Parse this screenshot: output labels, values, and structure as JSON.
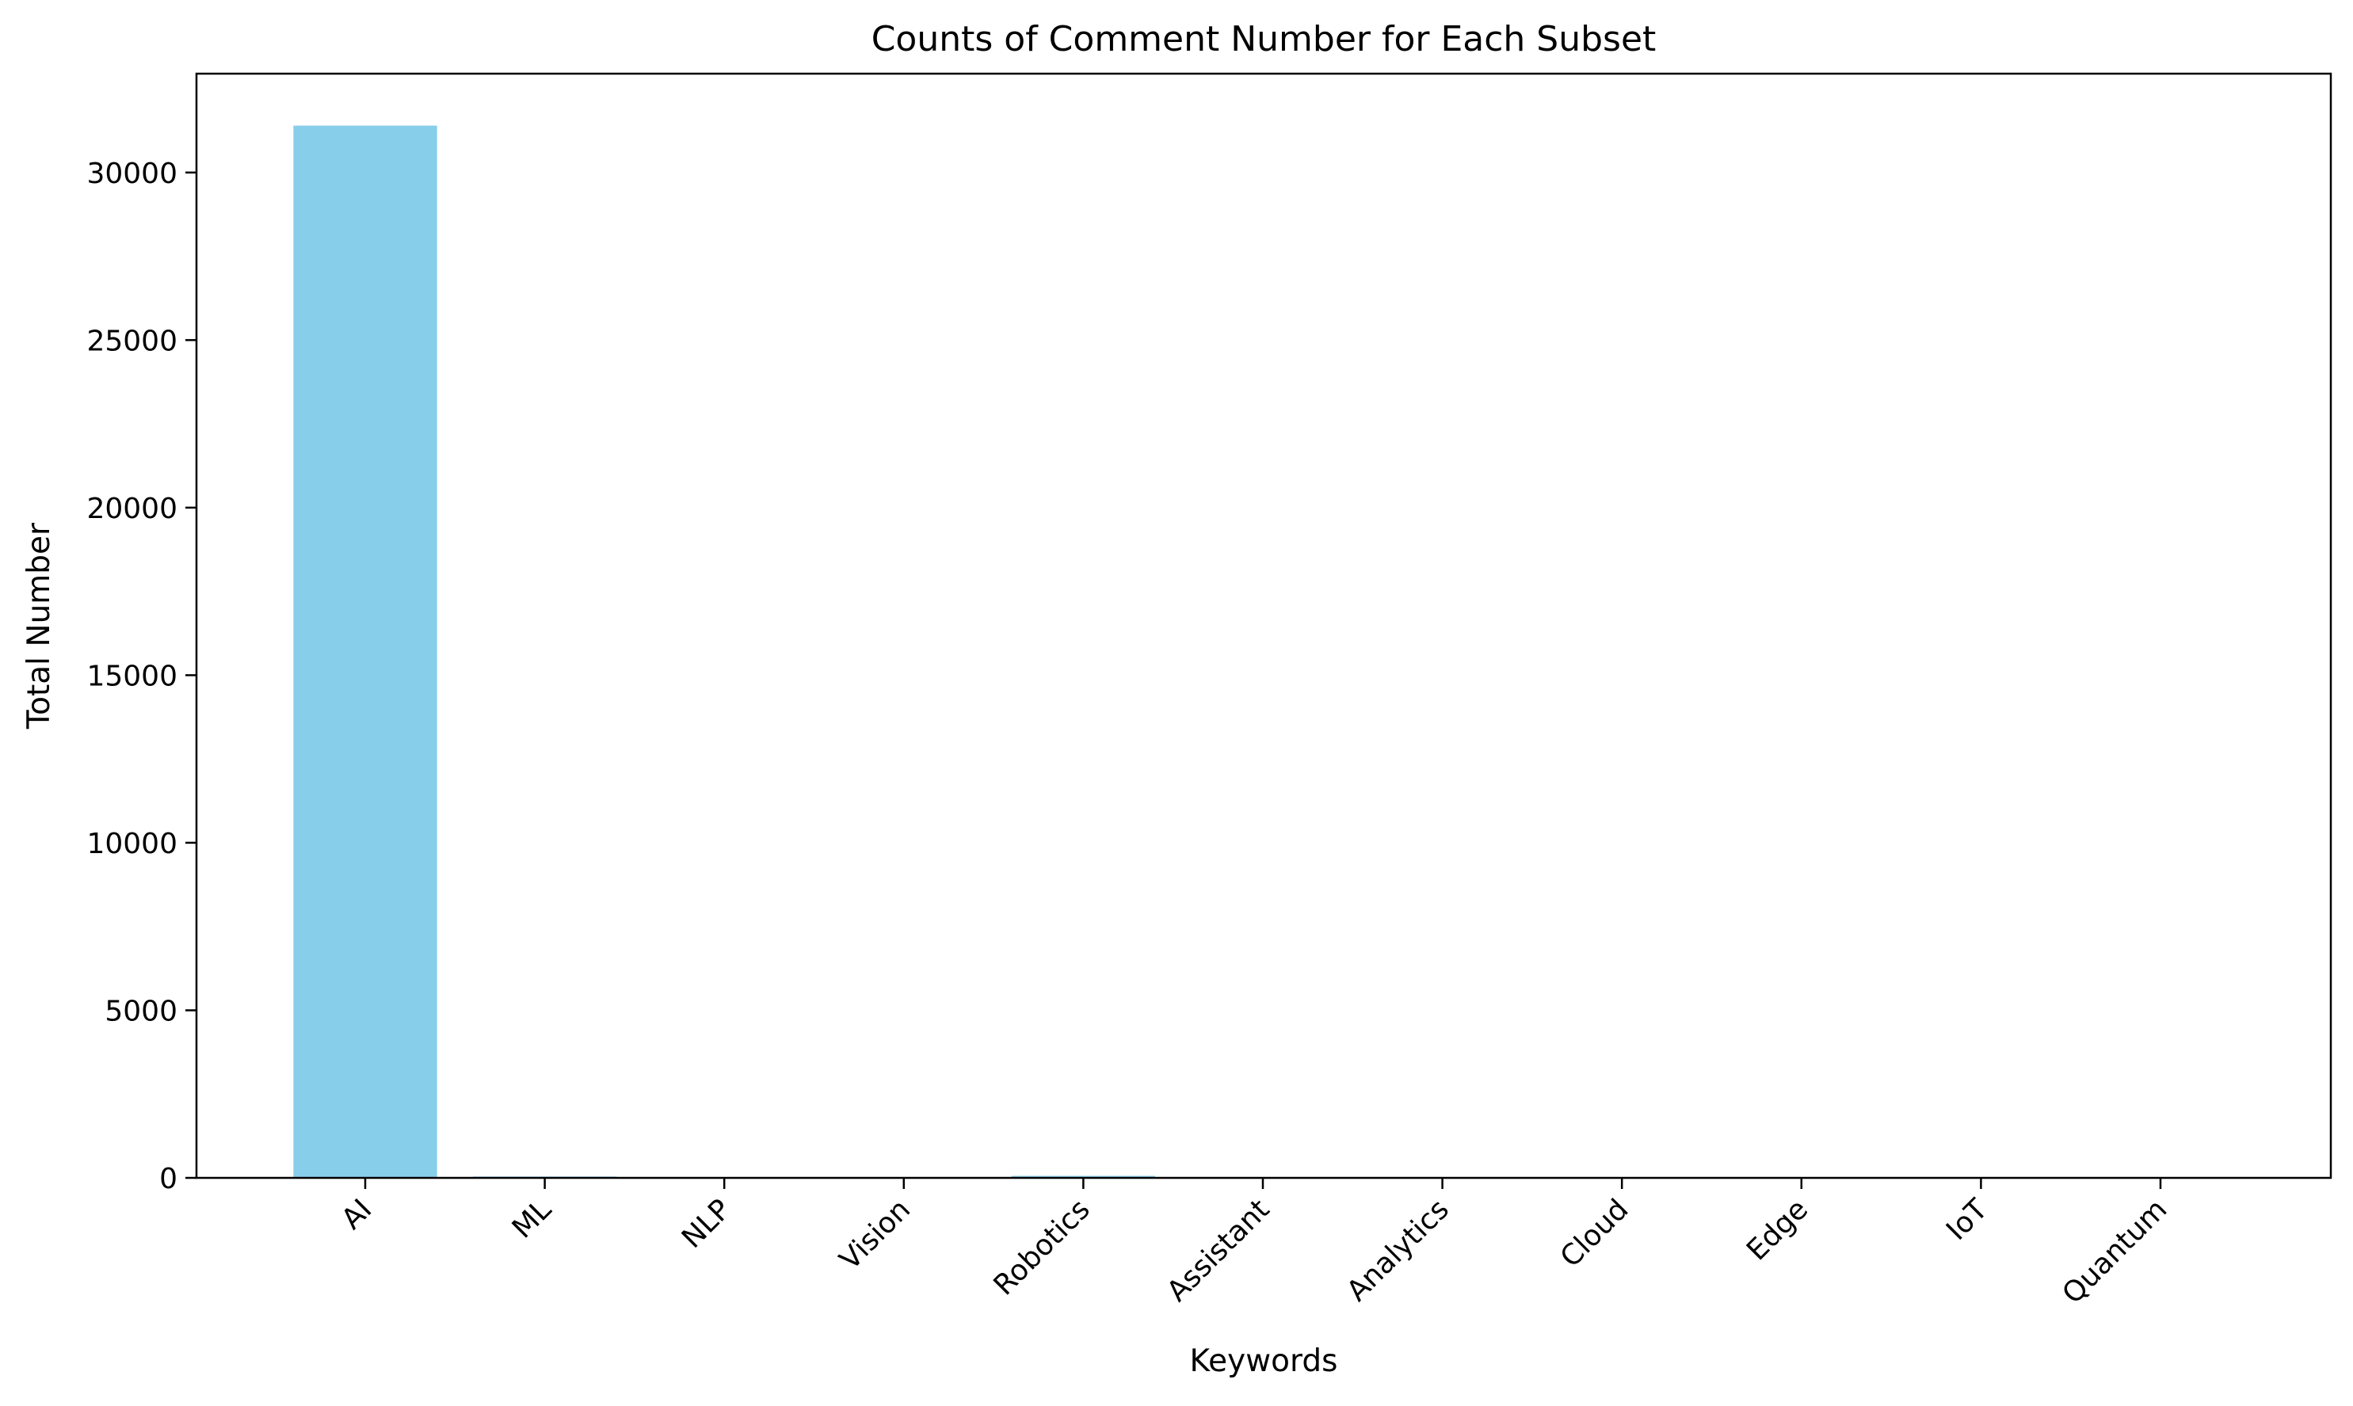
{
  "chart_data": {
    "type": "bar",
    "title": "Counts of Comment Number for Each Subset",
    "xlabel": "Keywords",
    "ylabel": "Total Number",
    "categories": [
      "AI",
      "ML",
      "NLP",
      "Vision",
      "Robotics",
      "Assistant",
      "Analytics",
      "Cloud",
      "Edge",
      "IoT",
      "Quantum"
    ],
    "values": [
      31400,
      40,
      10,
      10,
      60,
      10,
      10,
      10,
      10,
      10,
      10
    ],
    "ylim": [
      0,
      32950
    ],
    "yticks": [
      0,
      5000,
      10000,
      15000,
      20000,
      25000,
      30000
    ],
    "ytick_labels": [
      "0",
      "5000",
      "10000",
      "15000",
      "20000",
      "25000",
      "30000"
    ],
    "bar_color": "#87CEEB",
    "grid": false,
    "legend": "none"
  }
}
